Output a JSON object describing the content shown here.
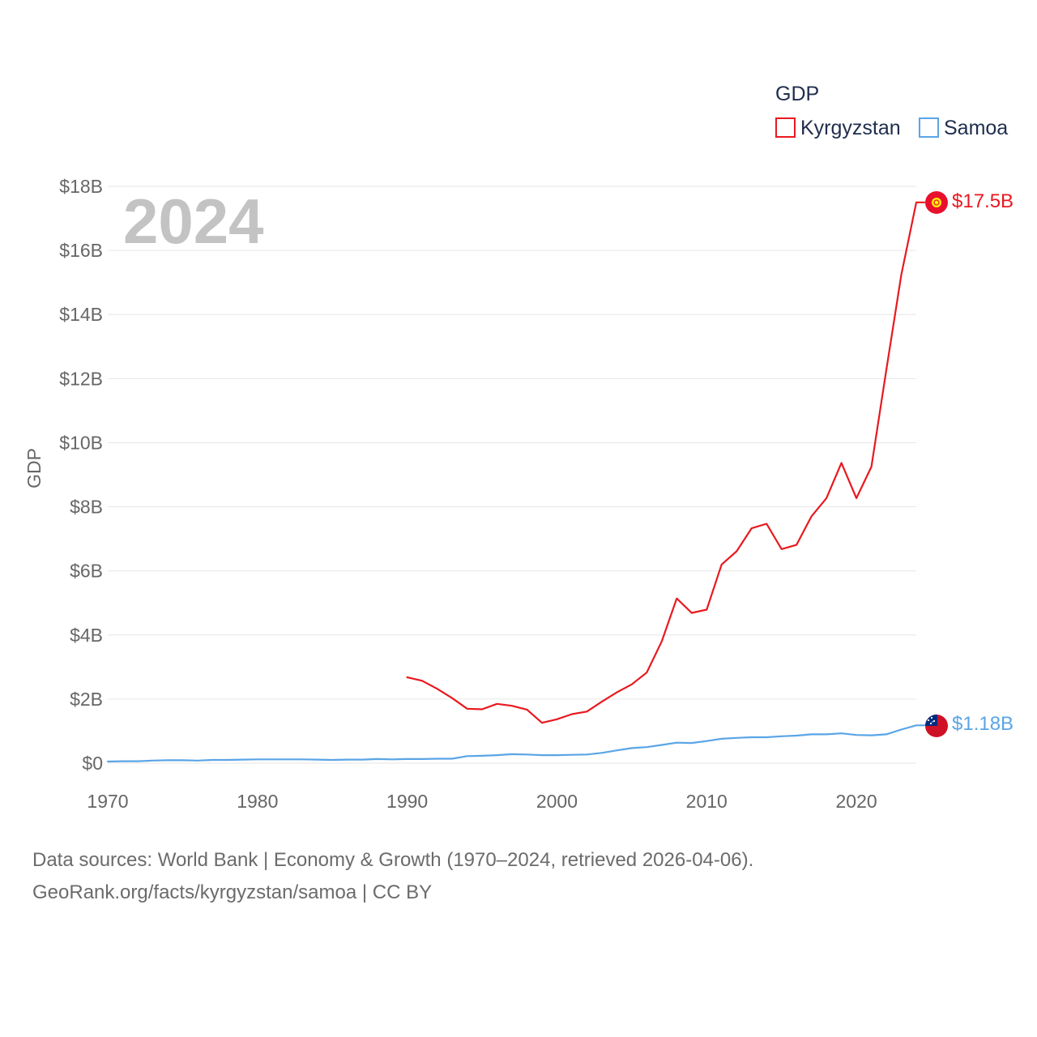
{
  "chart_data": {
    "type": "line",
    "year_label": "2024",
    "ylabel": "GDP",
    "xlabel": "",
    "xlim": [
      1970,
      2024
    ],
    "ylim": [
      0,
      18
    ],
    "x_ticks": [
      1970,
      1980,
      1990,
      2000,
      2010,
      2020
    ],
    "y_ticks": [
      {
        "value": 0,
        "label": "$0"
      },
      {
        "value": 2,
        "label": "$2B"
      },
      {
        "value": 4,
        "label": "$4B"
      },
      {
        "value": 6,
        "label": "$6B"
      },
      {
        "value": 8,
        "label": "$8B"
      },
      {
        "value": 10,
        "label": "$10B"
      },
      {
        "value": 12,
        "label": "$12B"
      },
      {
        "value": 14,
        "label": "$14B"
      },
      {
        "value": 16,
        "label": "$16B"
      },
      {
        "value": 18,
        "label": "$18B"
      }
    ],
    "units": "billions USD",
    "legend": {
      "title": "GDP",
      "position": "top-right"
    },
    "series": [
      {
        "name": "Kyrgyzstan",
        "color": "#e8191f",
        "end_label": "$17.5B",
        "flag_icon": "kyrgyzstan-flag-icon",
        "x": [
          1990,
          1991,
          1992,
          1993,
          1994,
          1995,
          1996,
          1997,
          1998,
          1999,
          2000,
          2001,
          2002,
          2003,
          2004,
          2005,
          2006,
          2007,
          2008,
          2009,
          2010,
          2011,
          2012,
          2013,
          2014,
          2015,
          2016,
          2017,
          2018,
          2019,
          2020,
          2021,
          2022,
          2023,
          2024
        ],
        "values": [
          2.68,
          2.57,
          2.32,
          2.03,
          1.7,
          1.68,
          1.85,
          1.79,
          1.67,
          1.26,
          1.37,
          1.53,
          1.61,
          1.92,
          2.21,
          2.46,
          2.83,
          3.8,
          5.14,
          4.69,
          4.79,
          6.2,
          6.61,
          7.33,
          7.47,
          6.68,
          6.81,
          7.7,
          8.27,
          9.37,
          8.27,
          9.25,
          12.27,
          15.24,
          17.5
        ]
      },
      {
        "name": "Samoa",
        "color": "#5aa5e6",
        "end_label": "$1.18B",
        "flag_icon": "samoa-flag-icon",
        "x": [
          1970,
          1971,
          1972,
          1973,
          1974,
          1975,
          1976,
          1977,
          1978,
          1979,
          1980,
          1981,
          1982,
          1983,
          1984,
          1985,
          1986,
          1987,
          1988,
          1989,
          1990,
          1991,
          1992,
          1993,
          1994,
          1995,
          1996,
          1997,
          1998,
          1999,
          2000,
          2001,
          2002,
          2003,
          2004,
          2005,
          2006,
          2007,
          2008,
          2009,
          2010,
          2011,
          2012,
          2013,
          2014,
          2015,
          2016,
          2017,
          2018,
          2019,
          2020,
          2021,
          2022,
          2023,
          2024
        ],
        "values": [
          0.05,
          0.06,
          0.06,
          0.08,
          0.09,
          0.09,
          0.08,
          0.1,
          0.1,
          0.11,
          0.12,
          0.12,
          0.12,
          0.12,
          0.11,
          0.1,
          0.11,
          0.11,
          0.13,
          0.12,
          0.13,
          0.13,
          0.14,
          0.14,
          0.22,
          0.23,
          0.25,
          0.28,
          0.27,
          0.25,
          0.25,
          0.26,
          0.27,
          0.32,
          0.4,
          0.47,
          0.5,
          0.57,
          0.64,
          0.63,
          0.69,
          0.76,
          0.79,
          0.81,
          0.81,
          0.84,
          0.86,
          0.9,
          0.9,
          0.93,
          0.88,
          0.87,
          0.9,
          1.05,
          1.18
        ]
      }
    ]
  },
  "footer": {
    "line1": "Data sources: World Bank | Economy & Growth (1970–2024, retrieved 2026-04-06).",
    "line2": "GeoRank.org/facts/kyrgyzstan/samoa | CC BY"
  }
}
